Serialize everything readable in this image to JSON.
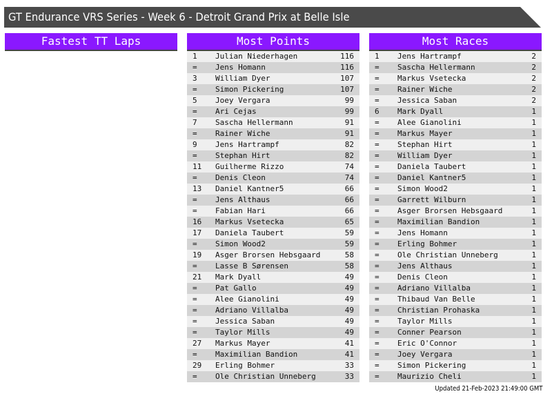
{
  "title": "GT Endurance VRS Series - Week 6 - Detroit Grand Prix at Belle Isle",
  "panels": {
    "fastest": {
      "label": "Fastest TT Laps",
      "rows": []
    },
    "points": {
      "label": "Most Points",
      "rows": [
        [
          "1",
          "Julian Niederhagen",
          "116"
        ],
        [
          "=",
          "Jens Homann",
          "116"
        ],
        [
          "3",
          "William Dyer",
          "107"
        ],
        [
          "=",
          "Simon Pickering",
          "107"
        ],
        [
          "5",
          "Joey Vergara",
          "99"
        ],
        [
          "=",
          "Ari Cejas",
          "99"
        ],
        [
          "7",
          "Sascha Hellermann",
          "91"
        ],
        [
          "=",
          "Rainer Wiche",
          "91"
        ],
        [
          "9",
          "Jens Hartrampf",
          "82"
        ],
        [
          "=",
          "Stephan Hirt",
          "82"
        ],
        [
          "11",
          "Guilherme Rizzo",
          "74"
        ],
        [
          "=",
          "Denis Cleon",
          "74"
        ],
        [
          "13",
          "Daniel Kantner5",
          "66"
        ],
        [
          "=",
          "Jens Althaus",
          "66"
        ],
        [
          "=",
          "Fabian Hari",
          "66"
        ],
        [
          "16",
          "Markus Vsetecka",
          "65"
        ],
        [
          "17",
          "Daniela Taubert",
          "59"
        ],
        [
          "=",
          "Simon Wood2",
          "59"
        ],
        [
          "19",
          "Asger Brorsen Hebsgaard",
          "58"
        ],
        [
          "=",
          "Lasse B Sørensen",
          "58"
        ],
        [
          "21",
          "Mark Dyall",
          "49"
        ],
        [
          "=",
          "Pat Gallo",
          "49"
        ],
        [
          "=",
          "Alee Gianolini",
          "49"
        ],
        [
          "=",
          "Adriano Villalba",
          "49"
        ],
        [
          "=",
          "Jessica Saban",
          "49"
        ],
        [
          "=",
          "Taylor Mills",
          "49"
        ],
        [
          "27",
          "Markus Mayer",
          "41"
        ],
        [
          "=",
          "Maximilian Bandion",
          "41"
        ],
        [
          "29",
          "Erling Bohmer",
          "33"
        ],
        [
          "=",
          "Ole Christian Unneberg",
          "33"
        ]
      ]
    },
    "races": {
      "label": "Most Races",
      "rows": [
        [
          "1",
          "Jens Hartrampf",
          "2"
        ],
        [
          "=",
          "Sascha Hellermann",
          "2"
        ],
        [
          "=",
          "Markus Vsetecka",
          "2"
        ],
        [
          "=",
          "Rainer Wiche",
          "2"
        ],
        [
          "=",
          "Jessica Saban",
          "2"
        ],
        [
          "6",
          "Mark Dyall",
          "1"
        ],
        [
          "=",
          "Alee Gianolini",
          "1"
        ],
        [
          "=",
          "Markus Mayer",
          "1"
        ],
        [
          "=",
          "Stephan Hirt",
          "1"
        ],
        [
          "=",
          "William Dyer",
          "1"
        ],
        [
          "=",
          "Daniela Taubert",
          "1"
        ],
        [
          "=",
          "Daniel Kantner5",
          "1"
        ],
        [
          "=",
          "Simon Wood2",
          "1"
        ],
        [
          "=",
          "Garrett Wilburn",
          "1"
        ],
        [
          "=",
          "Asger Brorsen Hebsgaard",
          "1"
        ],
        [
          "=",
          "Maximilian Bandion",
          "1"
        ],
        [
          "=",
          "Jens Homann",
          "1"
        ],
        [
          "=",
          "Erling Bohmer",
          "1"
        ],
        [
          "=",
          "Ole Christian Unneberg",
          "1"
        ],
        [
          "=",
          "Jens Althaus",
          "1"
        ],
        [
          "=",
          "Denis Cleon",
          "1"
        ],
        [
          "=",
          "Adriano Villalba",
          "1"
        ],
        [
          "=",
          "Thibaud Van Belle",
          "1"
        ],
        [
          "=",
          "Christian Prohaska",
          "1"
        ],
        [
          "=",
          "Taylor Mills",
          "1"
        ],
        [
          "=",
          "Conner Pearson",
          "1"
        ],
        [
          "=",
          "Eric O'Connor",
          "1"
        ],
        [
          "=",
          "Joey Vergara",
          "1"
        ],
        [
          "=",
          "Simon Pickering",
          "1"
        ],
        [
          "=",
          "Maurizio Cheli",
          "1"
        ]
      ]
    }
  },
  "updated": "Updated 21-Feb-2023 21:49:00 GMT",
  "colors": {
    "header": "#8a18ff",
    "titlebar": "#4a4a4a"
  }
}
